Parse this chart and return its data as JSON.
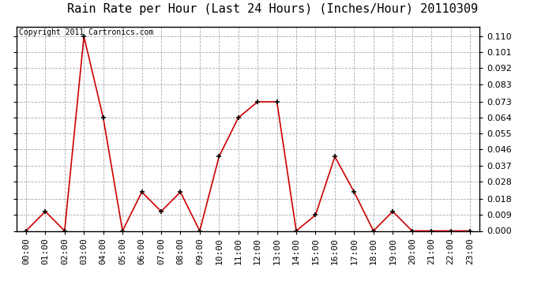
{
  "title": "Rain Rate per Hour (Last 24 Hours) (Inches/Hour) 20110309",
  "copyright_text": "Copyright 2011 Cartronics.com",
  "line_color": "#cc0000",
  "bg_color": "#ffffff",
  "plot_bg_color": "#ffffff",
  "grid_color": "#aaaaaa",
  "marker_color": "#000000",
  "marker_size": 5,
  "x_labels": [
    "00:00",
    "01:00",
    "02:00",
    "03:00",
    "04:00",
    "05:00",
    "06:00",
    "07:00",
    "08:00",
    "09:00",
    "10:00",
    "11:00",
    "12:00",
    "13:00",
    "14:00",
    "15:00",
    "16:00",
    "17:00",
    "18:00",
    "19:00",
    "20:00",
    "21:00",
    "22:00",
    "23:00"
  ],
  "y_values": [
    0.0,
    0.011,
    0.0,
    0.11,
    0.064,
    0.0,
    0.022,
    0.011,
    0.022,
    0.0,
    0.042,
    0.064,
    0.073,
    0.073,
    0.0,
    0.009,
    0.042,
    0.022,
    0.0,
    0.011,
    0.0,
    0.0,
    0.0,
    0.0
  ],
  "ylim": [
    0.0,
    0.1155
  ],
  "y_ticks": [
    0.0,
    0.009,
    0.018,
    0.028,
    0.037,
    0.046,
    0.055,
    0.064,
    0.073,
    0.083,
    0.092,
    0.101,
    0.11
  ],
  "title_fontsize": 11,
  "tick_fontsize": 8,
  "copyright_fontsize": 7
}
